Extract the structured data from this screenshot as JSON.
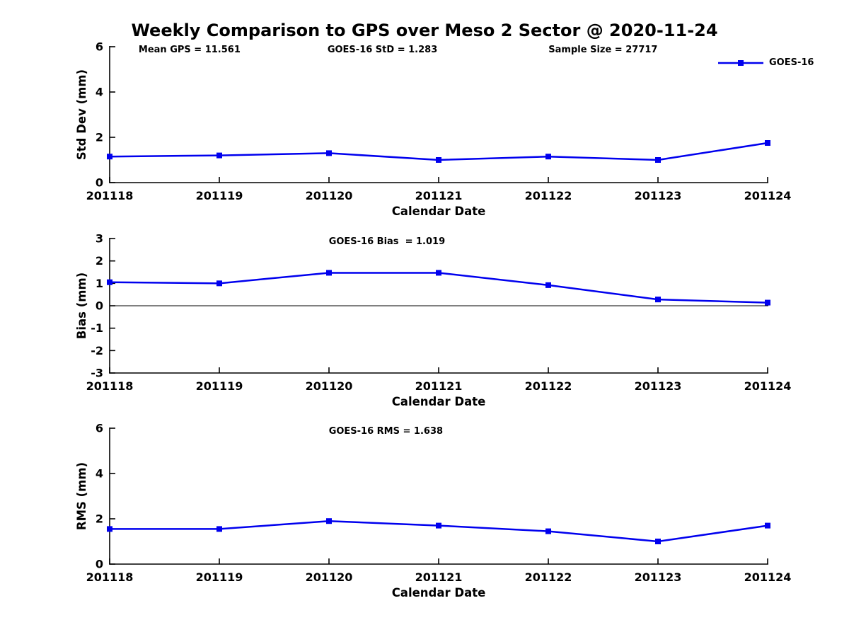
{
  "title": "Weekly Comparison to GPS over Meso 2 Sector @ 2020-11-24",
  "legend": {
    "label": "GOES-16",
    "color": "#0000EE",
    "marker": "square"
  },
  "chart_data": [
    {
      "type": "line",
      "name": "std-dev",
      "annotations": [
        "Mean GPS = 11.561",
        "GOES-16 StD = 1.283",
        "Sample Size = 27717"
      ],
      "x": [
        "201118",
        "201119",
        "201120",
        "201121",
        "201122",
        "201123",
        "201124"
      ],
      "series": [
        {
          "name": "GOES-16",
          "color": "#0000EE",
          "values": [
            1.15,
            1.2,
            1.3,
            1.0,
            1.15,
            1.0,
            1.75
          ]
        }
      ],
      "xlabel": "Calendar Date",
      "ylabel": "Std Dev (mm)",
      "ylim": [
        0,
        6
      ],
      "yticks": [
        0,
        2,
        4,
        6
      ],
      "zero_line": false,
      "grid": false,
      "legend_position": "top-right"
    },
    {
      "type": "line",
      "name": "bias",
      "annotations": [
        "GOES-16 Bias  = 1.019"
      ],
      "x": [
        "201118",
        "201119",
        "201120",
        "201121",
        "201122",
        "201123",
        "201124"
      ],
      "series": [
        {
          "name": "GOES-16",
          "color": "#0000EE",
          "values": [
            1.05,
            1.0,
            1.47,
            1.47,
            0.92,
            0.28,
            0.14
          ]
        }
      ],
      "xlabel": "Calendar Date",
      "ylabel": "Bias (mm)",
      "ylim": [
        -3,
        3
      ],
      "yticks": [
        3,
        2,
        1,
        0,
        -1,
        -2,
        -3
      ],
      "zero_line": true,
      "grid": false,
      "legend_position": "none"
    },
    {
      "type": "line",
      "name": "rms",
      "annotations": [
        "GOES-16 RMS = 1.638"
      ],
      "x": [
        "201118",
        "201119",
        "201120",
        "201121",
        "201122",
        "201123",
        "201124"
      ],
      "series": [
        {
          "name": "GOES-16",
          "color": "#0000EE",
          "values": [
            1.55,
            1.55,
            1.9,
            1.7,
            1.45,
            1.0,
            1.7
          ]
        }
      ],
      "xlabel": "Calendar Date",
      "ylabel": "RMS (mm)",
      "ylim": [
        0,
        6
      ],
      "yticks": [
        0,
        2,
        4,
        6
      ],
      "zero_line": false,
      "grid": false,
      "legend_position": "none"
    }
  ]
}
